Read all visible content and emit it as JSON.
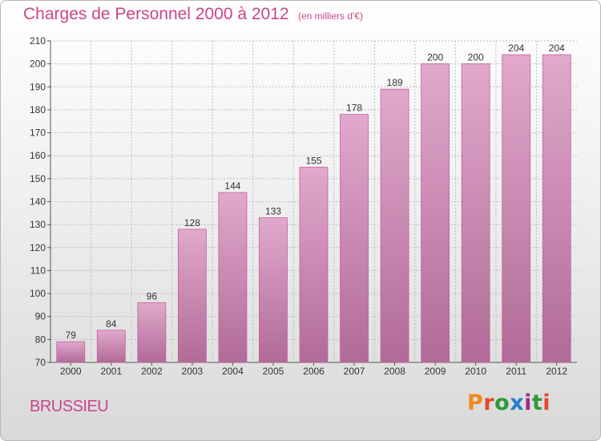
{
  "header": {
    "title": "Charges de Personnel 2000 à 2012",
    "subtitle": "(en milliers d'€)"
  },
  "footer": {
    "commune": "BRUSSIEU",
    "logo_text": "Proxiti",
    "logo_colors": [
      "#f08a1f",
      "#e5492a",
      "#2d9a36",
      "#1f7fd0",
      "#9c2b87",
      "#2d9a36",
      "#e5492a"
    ]
  },
  "colors": {
    "bar_top": "#e2a8cd",
    "bar_bottom": "#b06b97",
    "bar_stroke": "#c0609a",
    "grid": "#bdbdbd",
    "text": "#333333",
    "accent": "#c9448a"
  },
  "chart_data": {
    "type": "bar",
    "categories": [
      "2000",
      "2001",
      "2002",
      "2003",
      "2004",
      "2005",
      "2006",
      "2007",
      "2008",
      "2009",
      "2010",
      "2011",
      "2012"
    ],
    "values": [
      79,
      84,
      96,
      128,
      144,
      133,
      155,
      178,
      189,
      200,
      200,
      204,
      204
    ],
    "title": "Charges de Personnel 2000 à 2012",
    "subtitle": "(en milliers d'€)",
    "xlabel": "",
    "ylabel": "",
    "ylim": [
      70,
      210
    ],
    "yticks": [
      70,
      80,
      90,
      100,
      110,
      120,
      130,
      140,
      150,
      160,
      170,
      180,
      190,
      200,
      210
    ],
    "grid": true,
    "data_labels": true
  }
}
